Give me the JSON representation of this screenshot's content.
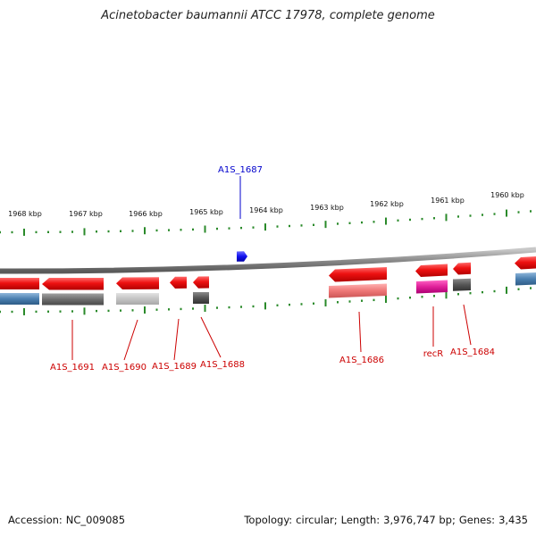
{
  "title": "Acinetobacter baumannii ATCC 17978, complete genome",
  "footer": {
    "accession_label": "Accession:",
    "accession": "NC_009085",
    "topology_label": "Topology:",
    "topology": "circular",
    "length_label": "Length:",
    "length": "3,976,747 bp",
    "genes_label": "Genes:",
    "genes": "3,435"
  },
  "scale_labels": [
    "1968 kbp",
    "1967 kbp",
    "1966 kbp",
    "1965 kbp",
    "1964 kbp",
    "1963 kbp",
    "1962 kbp",
    "1961 kbp",
    "1960 kbp"
  ],
  "genes": [
    {
      "name": "A1S_1691",
      "color": "#d00000"
    },
    {
      "name": "A1S_1690",
      "color": "#d00000"
    },
    {
      "name": "A1S_1689",
      "color": "#d00000"
    },
    {
      "name": "A1S_1688",
      "color": "#d00000"
    },
    {
      "name": "A1S_1687",
      "color": "#0000cc"
    },
    {
      "name": "A1S_1686",
      "color": "#d00000"
    },
    {
      "name": "recR",
      "color": "#d00000"
    },
    {
      "name": "A1S_1684",
      "color": "#d00000"
    }
  ],
  "colors": {
    "tick": "#2a8a2a",
    "backbone": "#8c8c8c",
    "gene_red": "#ee1111",
    "gene_blue": "#1111ee",
    "blue_track": "#4a7fb0",
    "gray_track": "#6e6e6e",
    "lightgray_track": "#c4c4c4",
    "pink_track": "#ee7777",
    "magenta_track": "#e0209a",
    "darkgray_track": "#555555"
  }
}
